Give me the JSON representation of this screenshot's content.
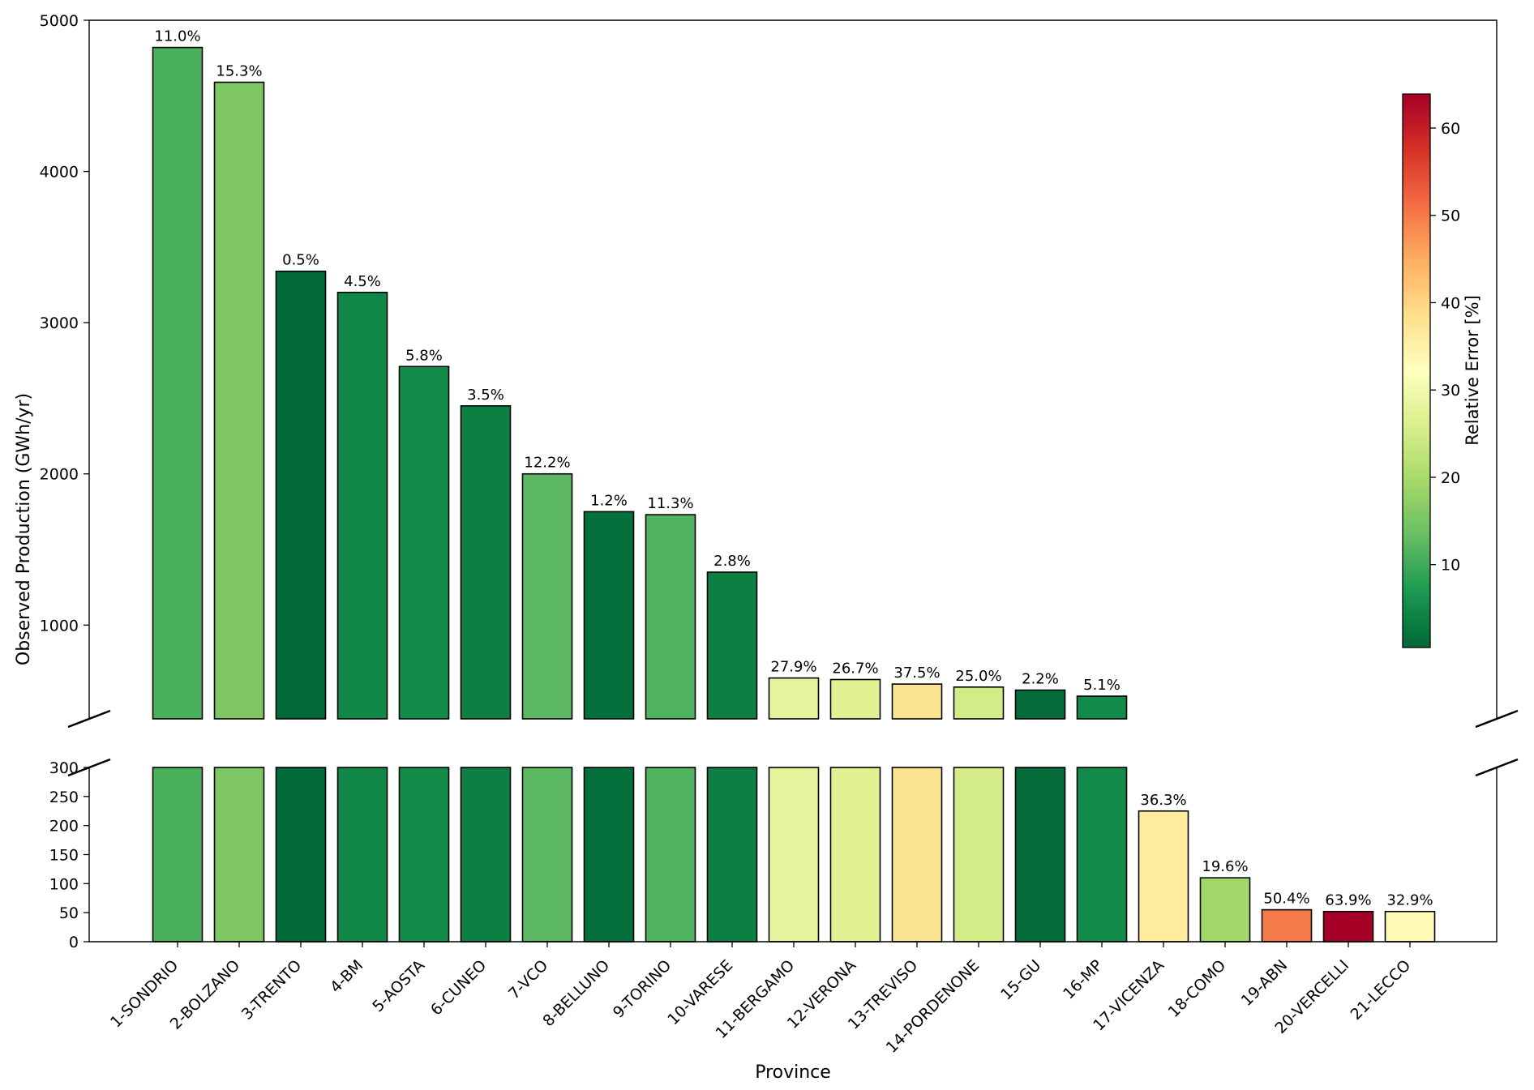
{
  "chart_data": {
    "type": "bar",
    "xlabel": "Province",
    "ylabel": "Observed Production (GWh/yr)",
    "categories": [
      "1-SONDRIO",
      "2-BOLZANO",
      "3-TRENTO",
      "4-BM",
      "5-AOSTA",
      "6-CUNEO",
      "7-VCO",
      "8-BELLUNO",
      "9-TORINO",
      "10-VARESE",
      "11-BERGAMO",
      "12-VERONA",
      "13-TREVISO",
      "14-PORDENONE",
      "15-GU",
      "16-MP",
      "17-VICENZA",
      "18-COMO",
      "19-ABN",
      "20-VERCELLI",
      "21-LECCO"
    ],
    "values": [
      4820,
      4590,
      3340,
      3200,
      2710,
      2450,
      2000,
      1750,
      1730,
      1350,
      650,
      640,
      610,
      590,
      570,
      530,
      225,
      110,
      55,
      52,
      52
    ],
    "relative_error_labels": [
      "11.0%",
      "15.3%",
      "0.5%",
      "4.5%",
      "5.8%",
      "3.5%",
      "12.2%",
      "1.2%",
      "11.3%",
      "2.8%",
      "27.9%",
      "26.7%",
      "37.5%",
      "25.0%",
      "2.2%",
      "5.1%",
      "36.3%",
      "19.6%",
      "50.4%",
      "63.9%",
      "32.9%"
    ],
    "relative_error": [
      11.0,
      15.3,
      0.5,
      4.5,
      5.8,
      3.5,
      12.2,
      1.2,
      11.3,
      2.8,
      27.9,
      26.7,
      37.5,
      25.0,
      2.2,
      5.1,
      36.3,
      19.6,
      50.4,
      63.9,
      32.9
    ],
    "bar_colors": [
      "#4bb05c",
      "#7ec563",
      "#026939",
      "#118848",
      "#138c4a",
      "#0d7f43",
      "#5cb761",
      "#05703b",
      "#51b25f",
      "#0d7f43",
      "#e4f49c",
      "#e0f293",
      "#fce592",
      "#d3ec87",
      "#066d3a",
      "#128a49",
      "#feeb9e",
      "#a2d86a",
      "#f57a49",
      "#a60126",
      "#fffab6"
    ],
    "y_upper_range": [
      380,
      5000
    ],
    "y_upper_ticks": [
      "1000",
      "2000",
      "3000",
      "4000",
      "5000"
    ],
    "y_lower_range": [
      0,
      300
    ],
    "y_lower_ticks": [
      "0",
      "50",
      "100",
      "150",
      "200",
      "250",
      "300"
    ],
    "broken_axis": true,
    "colorbar": {
      "title": "Relative Error [%]",
      "colormap": "RdYlGn_r",
      "range": [
        0.5,
        63.9
      ],
      "ticks": [
        "10",
        "20",
        "30",
        "40",
        "50",
        "60"
      ],
      "stops": [
        "#006837",
        "#1a9850",
        "#66bd63",
        "#a6d96a",
        "#d9ef8b",
        "#ffffbf",
        "#fee08b",
        "#fdae61",
        "#f46d43",
        "#d73027",
        "#a50026"
      ]
    },
    "grid": false
  }
}
